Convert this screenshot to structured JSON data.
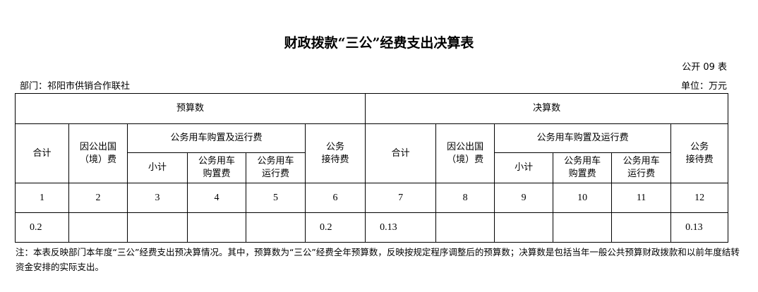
{
  "title": "财政拨款“三公”经费支出决算表",
  "form_code": "公开 09 表",
  "department": "部门：祁阳市供销合作联社",
  "unit": "单位：万元",
  "groups": {
    "budget": "预算数",
    "final": "决算数"
  },
  "headers": {
    "total": "合计",
    "abroad_l1": "因公出国",
    "abroad_l2": "（境）费",
    "vehicle": "公务用车购置及运行费",
    "subtotal": "小计",
    "purchase_l1": "公务用车",
    "purchase_l2": "购置费",
    "operate_l1": "公务用车",
    "operate_l2": "运行费",
    "reception_l1": "公务",
    "reception_l2": "接待费"
  },
  "col_numbers": [
    "1",
    "2",
    "3",
    "4",
    "5",
    "6",
    "7",
    "8",
    "9",
    "10",
    "11",
    "12"
  ],
  "values": [
    "0.2",
    "",
    "",
    "",
    "",
    "0.2",
    "0.13",
    "",
    "",
    "",
    "",
    "0.13"
  ],
  "note": "注：本表反映部门本年度“三公”经费支出预决算情况。其中，预算数为“三公”经费全年预算数，反映按规定程序调整后的预算数；决算数是包括当年一般公共预算财政拨款和以前年度结转资金安排的实际支出。"
}
